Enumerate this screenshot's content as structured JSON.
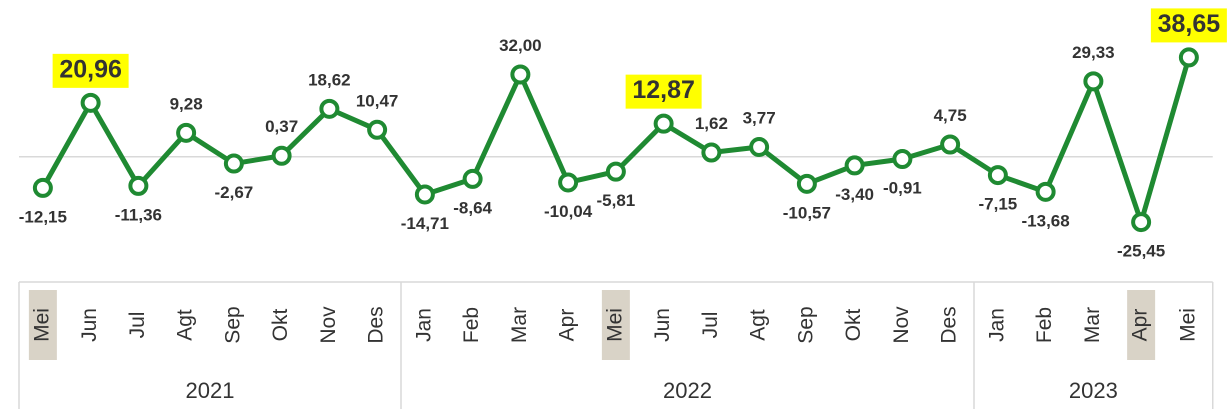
{
  "chart_data": {
    "type": "line",
    "categories": [
      "Mei",
      "Jun",
      "Jul",
      "Agt",
      "Sep",
      "Okt",
      "Nov",
      "Des",
      "Jan",
      "Feb",
      "Mar",
      "Apr",
      "Mei",
      "Jun",
      "Jul",
      "Agt",
      "Sep",
      "Okt",
      "Nov",
      "Des",
      "Jan",
      "Feb",
      "Mar",
      "Apr",
      "Mei"
    ],
    "groups": [
      {
        "label": "2021",
        "span": 8
      },
      {
        "label": "2022",
        "span": 12
      },
      {
        "label": "2023",
        "span": 5
      }
    ],
    "series": [
      {
        "color": "#1f8a32",
        "values": [
          -12.15,
          20.96,
          -11.36,
          9.28,
          -2.67,
          0.37,
          18.62,
          10.47,
          -14.71,
          -8.64,
          32.0,
          -10.04,
          -5.81,
          12.87,
          1.62,
          3.77,
          -10.57,
          -3.4,
          -0.91,
          4.75,
          -7.15,
          -13.68,
          29.33,
          -25.45,
          38.65
        ],
        "value_labels": [
          "-12,15",
          "20,96",
          "-11,36",
          "9,28",
          "-2,67",
          "0,37",
          "18,62",
          "10,47",
          "-14,71",
          "-8,64",
          "32,00",
          "-10,04",
          "-5,81",
          "12,87",
          "1,62",
          "3,77",
          "-10,57",
          "-3,40",
          "-0,91",
          "4,75",
          "-7,15",
          "-13,68",
          "29,33",
          "-25,45",
          "38,65"
        ]
      }
    ],
    "ylim": [
      -48,
      61
    ],
    "highlight_points": [
      1,
      13,
      24
    ],
    "highlight_color": "#ffff00",
    "highlight_categories": [
      0,
      12,
      23
    ],
    "category_highlight_color": "#d9d3c7"
  }
}
